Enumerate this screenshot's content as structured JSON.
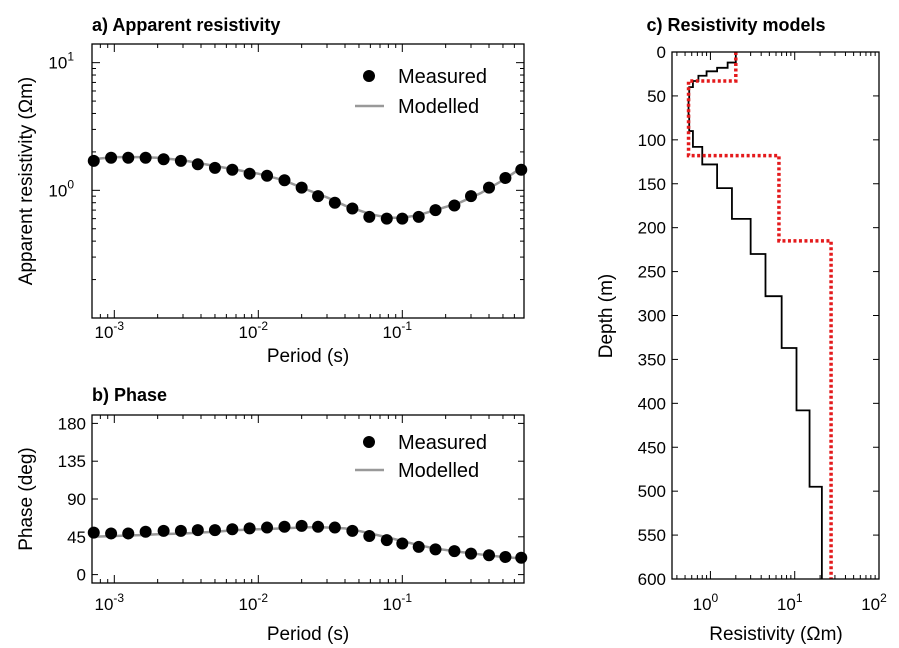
{
  "chart_data": [
    {
      "type": "scatter",
      "title": "a) Apparent resistivity",
      "xlabel": "Period (s)",
      "ylabel": "Apparent resistivity (Ωm)",
      "xscale": "log",
      "yscale": "log",
      "xlim": [
        0.0007,
        0.7
      ],
      "ylim": [
        0.1,
        14
      ],
      "xticks": [
        {
          "base": "10",
          "exp": "-3",
          "v": 0.001
        },
        {
          "base": "10",
          "exp": "-2",
          "v": 0.01
        },
        {
          "base": "10",
          "exp": "-1",
          "v": 0.1
        }
      ],
      "yticks": [
        {
          "base": "10",
          "exp": "0",
          "v": 1
        },
        {
          "base": "10",
          "exp": "1",
          "v": 10
        }
      ],
      "legend": "top-right",
      "series": [
        {
          "name": "Measured",
          "style": "points",
          "color": "#000000",
          "x": [
            0.00072,
            0.00095,
            0.00125,
            0.00165,
            0.0022,
            0.0029,
            0.0038,
            0.005,
            0.0066,
            0.0087,
            0.0115,
            0.0152,
            0.02,
            0.026,
            0.034,
            0.045,
            0.059,
            0.078,
            0.1,
            0.13,
            0.17,
            0.23,
            0.3,
            0.4,
            0.52,
            0.67
          ],
          "y": [
            1.7,
            1.8,
            1.8,
            1.8,
            1.75,
            1.7,
            1.6,
            1.5,
            1.45,
            1.35,
            1.3,
            1.2,
            1.05,
            0.9,
            0.8,
            0.72,
            0.62,
            0.6,
            0.6,
            0.62,
            0.7,
            0.76,
            0.9,
            1.05,
            1.25,
            1.45
          ]
        },
        {
          "name": "Modelled",
          "style": "line",
          "color": "#999999",
          "x": [
            0.0007,
            0.001,
            0.0015,
            0.002,
            0.003,
            0.005,
            0.007,
            0.01,
            0.015,
            0.02,
            0.03,
            0.04,
            0.06,
            0.08,
            0.1,
            0.13,
            0.17,
            0.25,
            0.35,
            0.5,
            0.7
          ],
          "y": [
            1.75,
            1.82,
            1.82,
            1.8,
            1.72,
            1.55,
            1.45,
            1.35,
            1.2,
            1.05,
            0.88,
            0.76,
            0.65,
            0.61,
            0.61,
            0.64,
            0.7,
            0.8,
            0.95,
            1.2,
            1.55
          ]
        }
      ]
    },
    {
      "type": "scatter",
      "title": "b) Phase",
      "xlabel": "Period (s)",
      "ylabel": "Phase (deg)",
      "xscale": "log",
      "xlim": [
        0.0007,
        0.7
      ],
      "ylim": [
        -10,
        190
      ],
      "xticks": [
        {
          "base": "10",
          "exp": "-3",
          "v": 0.001
        },
        {
          "base": "10",
          "exp": "-2",
          "v": 0.01
        },
        {
          "base": "10",
          "exp": "-1",
          "v": 0.1
        }
      ],
      "yticks": [
        {
          "label": "180",
          "v": 180
        },
        {
          "label": "135",
          "v": 135
        },
        {
          "label": "90",
          "v": 90
        },
        {
          "label": "45",
          "v": 45
        },
        {
          "label": "0",
          "v": 0
        }
      ],
      "legend": "top-right",
      "series": [
        {
          "name": "Measured",
          "style": "points",
          "color": "#000000",
          "x": [
            0.00072,
            0.00095,
            0.00125,
            0.00165,
            0.0022,
            0.0029,
            0.0038,
            0.005,
            0.0066,
            0.0087,
            0.0115,
            0.0152,
            0.02,
            0.026,
            0.034,
            0.045,
            0.059,
            0.078,
            0.1,
            0.13,
            0.17,
            0.23,
            0.3,
            0.4,
            0.52,
            0.67
          ],
          "y": [
            50,
            49,
            49,
            51,
            52,
            52,
            53,
            53,
            54,
            55,
            56,
            57,
            58,
            57,
            56,
            52,
            46,
            41,
            37,
            33,
            30,
            28,
            25,
            23,
            21,
            20
          ]
        },
        {
          "name": "Modelled",
          "style": "line",
          "color": "#999999",
          "x": [
            0.0007,
            0.001,
            0.0015,
            0.002,
            0.003,
            0.005,
            0.007,
            0.01,
            0.015,
            0.02,
            0.025,
            0.03,
            0.04,
            0.05,
            0.06,
            0.08,
            0.1,
            0.13,
            0.17,
            0.25,
            0.35,
            0.5,
            0.7
          ],
          "y": [
            45,
            46,
            47,
            48,
            49,
            51,
            53,
            54,
            55,
            56,
            56.5,
            56,
            55,
            52,
            49,
            44,
            40,
            35,
            31,
            27,
            24,
            21,
            19
          ]
        }
      ]
    },
    {
      "type": "line",
      "title": "c) Resistivity models",
      "xlabel": "Resistivity (Ωm)",
      "ylabel": "Depth (m)",
      "xscale": "log",
      "xlim": [
        0.35,
        100
      ],
      "ylim": [
        0,
        600
      ],
      "y_reversed": true,
      "xticks": [
        {
          "base": "10",
          "exp": "0",
          "v": 1
        },
        {
          "base": "10",
          "exp": "1",
          "v": 10
        },
        {
          "base": "10",
          "exp": "2",
          "v": 100
        }
      ],
      "yticks": [
        {
          "label": "0",
          "v": 0
        },
        {
          "label": "50",
          "v": 50
        },
        {
          "label": "100",
          "v": 100
        },
        {
          "label": "150",
          "v": 150
        },
        {
          "label": "200",
          "v": 200
        },
        {
          "label": "250",
          "v": 250
        },
        {
          "label": "300",
          "v": 300
        },
        {
          "label": "350",
          "v": 350
        },
        {
          "label": "400",
          "v": 400
        },
        {
          "label": "450",
          "v": 450
        },
        {
          "label": "500",
          "v": 500
        },
        {
          "label": "550",
          "v": 550
        },
        {
          "label": "600",
          "v": 600
        }
      ],
      "series": [
        {
          "style": "step-black",
          "color": "#000000",
          "resistivity": [
            2.0,
            1.6,
            1.2,
            0.9,
            0.72,
            0.62,
            0.56,
            0.55,
            0.56,
            0.62,
            0.8,
            1.2,
            1.8,
            3.0,
            4.5,
            7.0,
            10.5,
            15.0,
            21.0
          ],
          "depth_top": [
            0,
            12,
            18,
            22,
            27,
            33,
            40,
            55,
            72,
            90,
            108,
            128,
            155,
            190,
            230,
            278,
            337,
            408,
            495
          ],
          "depth_bottom": [
            12,
            18,
            22,
            27,
            33,
            40,
            55,
            72,
            90,
            108,
            128,
            155,
            190,
            230,
            278,
            337,
            408,
            495,
            600
          ]
        },
        {
          "style": "step-dotted",
          "color": "#e41a1c",
          "resistivity": [
            2.0,
            0.55,
            6.5,
            27.0
          ],
          "depth_top": [
            0,
            33,
            118,
            215
          ],
          "depth_bottom": [
            33,
            118,
            215,
            600
          ]
        }
      ]
    }
  ]
}
